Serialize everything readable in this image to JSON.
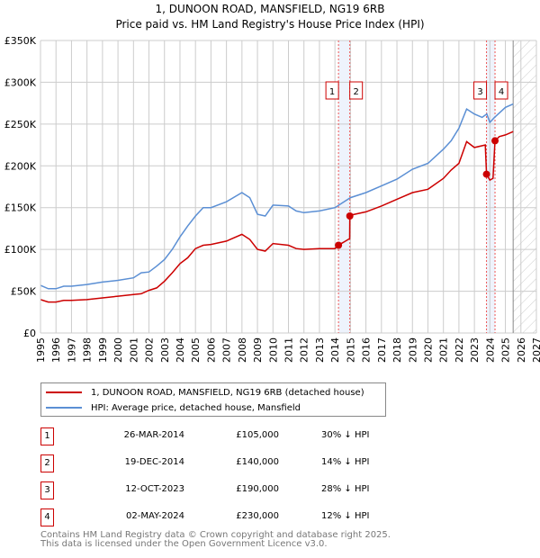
{
  "chart_data": {
    "type": "line",
    "title": "1, DUNOON ROAD, MANSFIELD, NG19 6RB",
    "subtitle": "Price paid vs. HM Land Registry's House Price Index (HPI)",
    "xlim": [
      1995,
      2027
    ],
    "ylim": [
      0,
      350000
    ],
    "yticks": [
      {
        "v": 0,
        "label": "£0"
      },
      {
        "v": 50000,
        "label": "£50K"
      },
      {
        "v": 100000,
        "label": "£100K"
      },
      {
        "v": 150000,
        "label": "£150K"
      },
      {
        "v": 200000,
        "label": "£200K"
      },
      {
        "v": 250000,
        "label": "£250K"
      },
      {
        "v": 300000,
        "label": "£300K"
      },
      {
        "v": 350000,
        "label": "£350K"
      }
    ],
    "xticks": [
      "1995",
      "1996",
      "1997",
      "1998",
      "1999",
      "2000",
      "2001",
      "2002",
      "2003",
      "2004",
      "2005",
      "2006",
      "2007",
      "2008",
      "2009",
      "2010",
      "2011",
      "2012",
      "2013",
      "2014",
      "2015",
      "2016",
      "2017",
      "2018",
      "2019",
      "2020",
      "2021",
      "2022",
      "2023",
      "2024",
      "2025",
      "2026",
      "2027"
    ],
    "forecast_start": 2025.5,
    "series": [
      {
        "name": "1, DUNOON ROAD, MANSFIELD, NG19 6RB (detached house)",
        "color": "#cc0000",
        "x": [
          1995,
          1995.5,
          1996,
          1996.5,
          1997,
          1998,
          1999,
          2000,
          2001,
          2001.5,
          2002,
          2002.5,
          2003,
          2003.5,
          2004,
          2004.5,
          2005,
          2005.5,
          2006,
          2007,
          2008,
          2008.5,
          2009,
          2009.5,
          2010,
          2011,
          2011.5,
          2012,
          2013,
          2014,
          2014.23,
          2014.5,
          2014.95,
          2014.96,
          2015,
          2016,
          2017,
          2018,
          2019,
          2020,
          2021,
          2021.5,
          2022,
          2022.5,
          2023,
          2023.7,
          2023.78,
          2024.0,
          2024.2,
          2024.33,
          2024.6,
          2025,
          2025.5
        ],
        "y": [
          40000,
          37000,
          37000,
          39000,
          39000,
          40000,
          42000,
          44000,
          46000,
          47000,
          51000,
          54000,
          62000,
          72000,
          83000,
          90000,
          101000,
          105000,
          106000,
          110000,
          118000,
          112000,
          100000,
          98000,
          107000,
          105000,
          101000,
          100000,
          101000,
          101000,
          105000,
          108000,
          113000,
          140000,
          141000,
          145000,
          152000,
          160000,
          168000,
          172000,
          185000,
          195000,
          203000,
          229000,
          222000,
          225000,
          190000,
          183000,
          185000,
          230000,
          235000,
          237000,
          241000
        ]
      },
      {
        "name": "HPI: Average price, detached house, Mansfield",
        "color": "#5b8fd4",
        "x": [
          1995,
          1995.5,
          1996,
          1996.5,
          1997,
          1998,
          1999,
          2000,
          2001,
          2001.5,
          2002,
          2002.5,
          2003,
          2003.5,
          2004,
          2004.5,
          2005,
          2005.5,
          2006,
          2007,
          2008,
          2008.5,
          2009,
          2009.5,
          2010,
          2011,
          2011.5,
          2012,
          2013,
          2014,
          2014.5,
          2015,
          2016,
          2017,
          2018,
          2019,
          2020,
          2021,
          2021.5,
          2022,
          2022.5,
          2023,
          2023.5,
          2023.8,
          2024,
          2024.3,
          2025,
          2025.5
        ],
        "y": [
          57000,
          53000,
          53000,
          56000,
          56000,
          58000,
          61000,
          63000,
          66000,
          72000,
          73000,
          80000,
          88000,
          100000,
          115000,
          128000,
          140000,
          150000,
          150000,
          157000,
          168000,
          162000,
          142000,
          140000,
          153000,
          152000,
          146000,
          144000,
          146000,
          150000,
          156000,
          162000,
          168000,
          176000,
          184000,
          196000,
          203000,
          220000,
          230000,
          245000,
          268000,
          262000,
          258000,
          262000,
          252000,
          258000,
          270000,
          274000
        ]
      }
    ],
    "sales": [
      {
        "n": "1",
        "x": 2014.23,
        "price": 105000,
        "date": "26-MAR-2014",
        "price_label": "£105,000",
        "hpi": "30% ↓ HPI"
      },
      {
        "n": "2",
        "x": 2014.96,
        "price": 140000,
        "date": "19-DEC-2014",
        "price_label": "£140,000",
        "hpi": "14% ↓ HPI"
      },
      {
        "n": "3",
        "x": 2023.78,
        "price": 190000,
        "date": "12-OCT-2023",
        "price_label": "£190,000",
        "hpi": "28% ↓ HPI"
      },
      {
        "n": "4",
        "x": 2024.33,
        "price": 230000,
        "date": "02-MAY-2024",
        "price_label": "£230,000",
        "hpi": "12% ↓ HPI"
      }
    ]
  },
  "footer": {
    "line1": "Contains HM Land Registry data © Crown copyright and database right 2025.",
    "line2": "This data is licensed under the Open Government Licence v3.0."
  }
}
